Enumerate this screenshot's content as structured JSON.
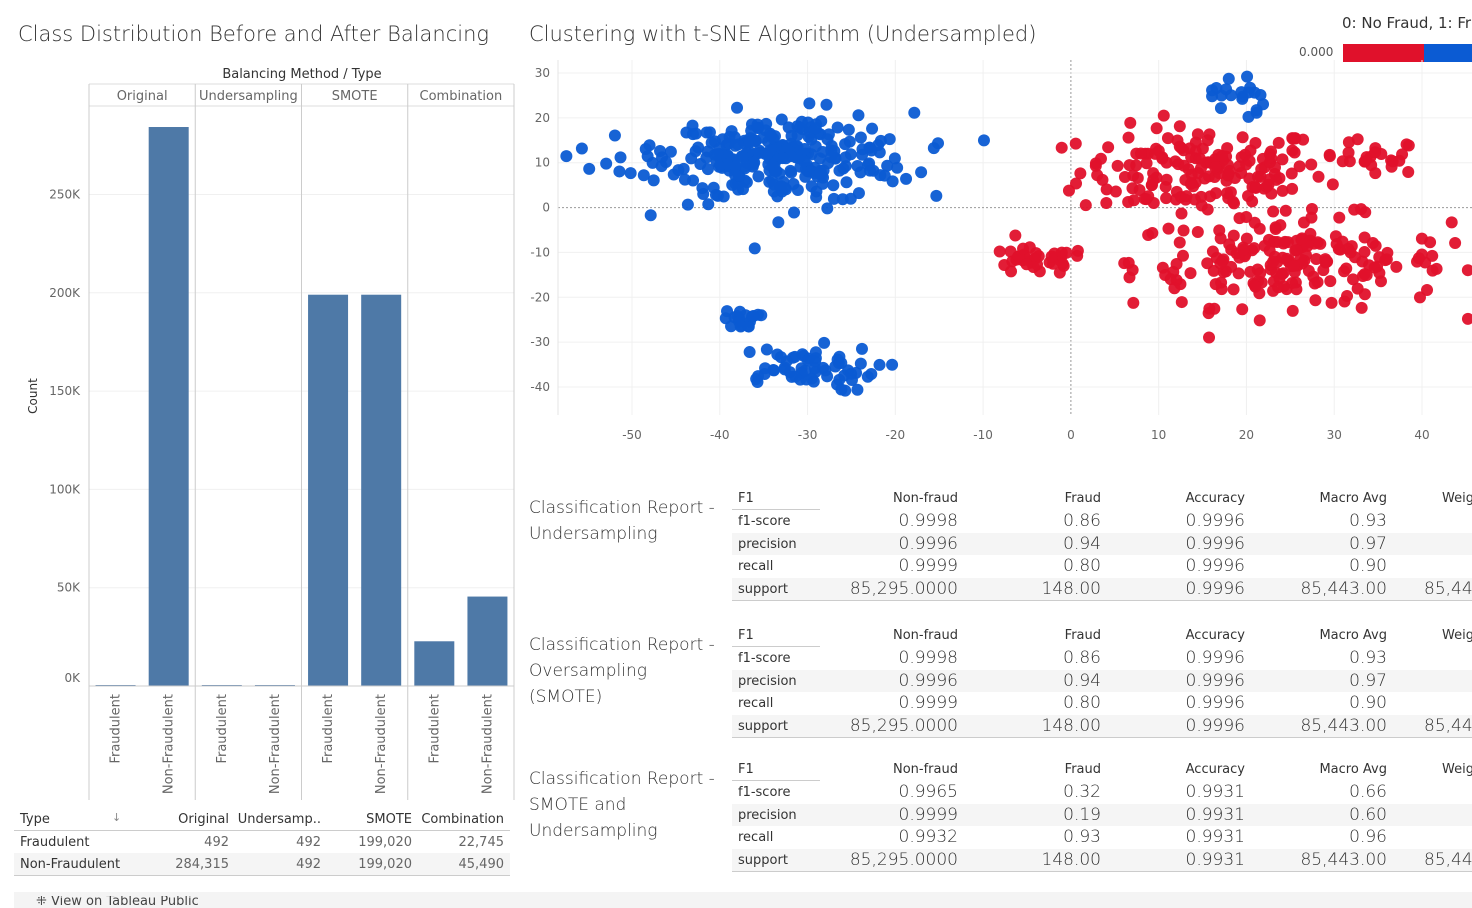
{
  "bar_section": {
    "title": "Class Distribution Before and After Balancing",
    "header": "Balancing Method / Type",
    "ylabel": "Count",
    "sort_glyph": "↓",
    "bar_color": "#4e79a7"
  },
  "scatter_section": {
    "title": "Clustering with t-SNE Algorithm (Undersampled)",
    "legend_title": "0: No Fraud, 1: Fr",
    "legend_value": "0.000",
    "legend_colors": [
      "#e0112b",
      "#0b5bd3"
    ]
  },
  "chart_data": [
    {
      "type": "bar",
      "title": "Class Distribution Before and After Balancing",
      "ylabel": "Count",
      "groups": [
        "Original",
        "Undersampling",
        "SMOTE",
        "Combination"
      ],
      "categories": [
        "Fraudulent",
        "Non-Fraudulent"
      ],
      "series": [
        {
          "group": "Original",
          "values": [
            492,
            284315
          ]
        },
        {
          "group": "Undersampling",
          "values": [
            492,
            492
          ]
        },
        {
          "group": "SMOTE",
          "values": [
            199020,
            199020
          ]
        },
        {
          "group": "Combination",
          "values": [
            22745,
            45490
          ]
        }
      ],
      "yticks": [
        "0K",
        "50K",
        "100K",
        "150K",
        "200K",
        "250K"
      ],
      "ylim": [
        0,
        295000
      ]
    },
    {
      "type": "scatter",
      "title": "Clustering with t-SNE Algorithm (Undersampled)",
      "xticks": [
        "-50",
        "-40",
        "-30",
        "-20",
        "-10",
        "0",
        "10",
        "20",
        "30",
        "40"
      ],
      "yticks": [
        "30",
        "20",
        "10",
        "0",
        "-10",
        "-20",
        "-30",
        "-40"
      ],
      "xlim": [
        -56,
        46
      ],
      "ylim": [
        -46,
        32
      ],
      "series": [
        {
          "name": "0",
          "color": "#0b5bd3",
          "clusters": [
            {
              "cx": -32,
              "cy": 11,
              "sx": 7,
              "sy": 5,
              "n": 240
            },
            {
              "cx": -40,
              "cy": 11,
              "sx": 6,
              "sy": 2,
              "n": 55
            },
            {
              "cx": -31,
              "cy": -36,
              "sx": 4.5,
              "sy": 2.5,
              "n": 60
            },
            {
              "cx": -37.5,
              "cy": -25,
              "sx": 1,
              "sy": 1,
              "n": 18
            },
            {
              "cx": 19,
              "cy": 25,
              "sx": 1.5,
              "sy": 3,
              "n": 20
            }
          ]
        },
        {
          "name": "1",
          "color": "#e0112b",
          "clusters": [
            {
              "cx": 15,
              "cy": 8,
              "sx": 7,
              "sy": 5,
              "n": 170
            },
            {
              "cx": 25,
              "cy": -12,
              "sx": 9,
              "sy": 5,
              "n": 200
            },
            {
              "cx": -4,
              "cy": -12,
              "sx": 3,
              "sy": 1.5,
              "n": 35
            },
            {
              "cx": 34,
              "cy": 11,
              "sx": 3,
              "sy": 2,
              "n": 25
            }
          ]
        }
      ]
    }
  ],
  "summary_table": {
    "headers": [
      "Type",
      "Original",
      "Undersamp..",
      "SMOTE",
      "Combination"
    ],
    "rows": [
      [
        "Fraudulent",
        "492",
        "492",
        "199,020",
        "22,745"
      ],
      [
        "Non-Fraudulent",
        "284,315",
        "492",
        "199,020",
        "45,490"
      ]
    ]
  },
  "reports": [
    {
      "title": "Classification Report - Undersampling",
      "columns": [
        "F1",
        "Non-fraud",
        "Fraud",
        "Accuracy",
        "Macro Avg",
        "Weig"
      ],
      "rows": [
        {
          "label": "f1-score",
          "values": [
            "0.9998",
            "0.86",
            "0.9996",
            "0.93"
          ]
        },
        {
          "label": "precision",
          "values": [
            "0.9996",
            "0.94",
            "0.9996",
            "0.97"
          ]
        },
        {
          "label": "recall",
          "values": [
            "0.9999",
            "0.80",
            "0.9996",
            "0.90"
          ]
        },
        {
          "label": "support",
          "values": [
            "85,295.0000",
            "148.00",
            "0.9996",
            "85,443.00",
            "85,44"
          ]
        }
      ]
    },
    {
      "title": "Classification Report - Oversampling (SMOTE)",
      "columns": [
        "F1",
        "Non-fraud",
        "Fraud",
        "Accuracy",
        "Macro Avg",
        "Weig"
      ],
      "rows": [
        {
          "label": "f1-score",
          "values": [
            "0.9998",
            "0.86",
            "0.9996",
            "0.93"
          ]
        },
        {
          "label": "precision",
          "values": [
            "0.9996",
            "0.94",
            "0.9996",
            "0.97"
          ]
        },
        {
          "label": "recall",
          "values": [
            "0.9999",
            "0.80",
            "0.9996",
            "0.90"
          ]
        },
        {
          "label": "support",
          "values": [
            "85,295.0000",
            "148.00",
            "0.9996",
            "85,443.00",
            "85,44"
          ]
        }
      ]
    },
    {
      "title": "Classification Report - SMOTE and Undersampling",
      "columns": [
        "F1",
        "Non-fraud",
        "Fraud",
        "Accuracy",
        "Macro Avg",
        "Weig"
      ],
      "rows": [
        {
          "label": "f1-score",
          "values": [
            "0.9965",
            "0.32",
            "0.9931",
            "0.66"
          ]
        },
        {
          "label": "precision",
          "values": [
            "0.9999",
            "0.19",
            "0.9931",
            "0.60"
          ]
        },
        {
          "label": "recall",
          "values": [
            "0.9932",
            "0.93",
            "0.9931",
            "0.96"
          ]
        },
        {
          "label": "support",
          "values": [
            "85,295.0000",
            "148.00",
            "0.9931",
            "85,443.00",
            "85,44"
          ]
        }
      ]
    }
  ],
  "footer": {
    "link": "View on Tableau Public"
  }
}
